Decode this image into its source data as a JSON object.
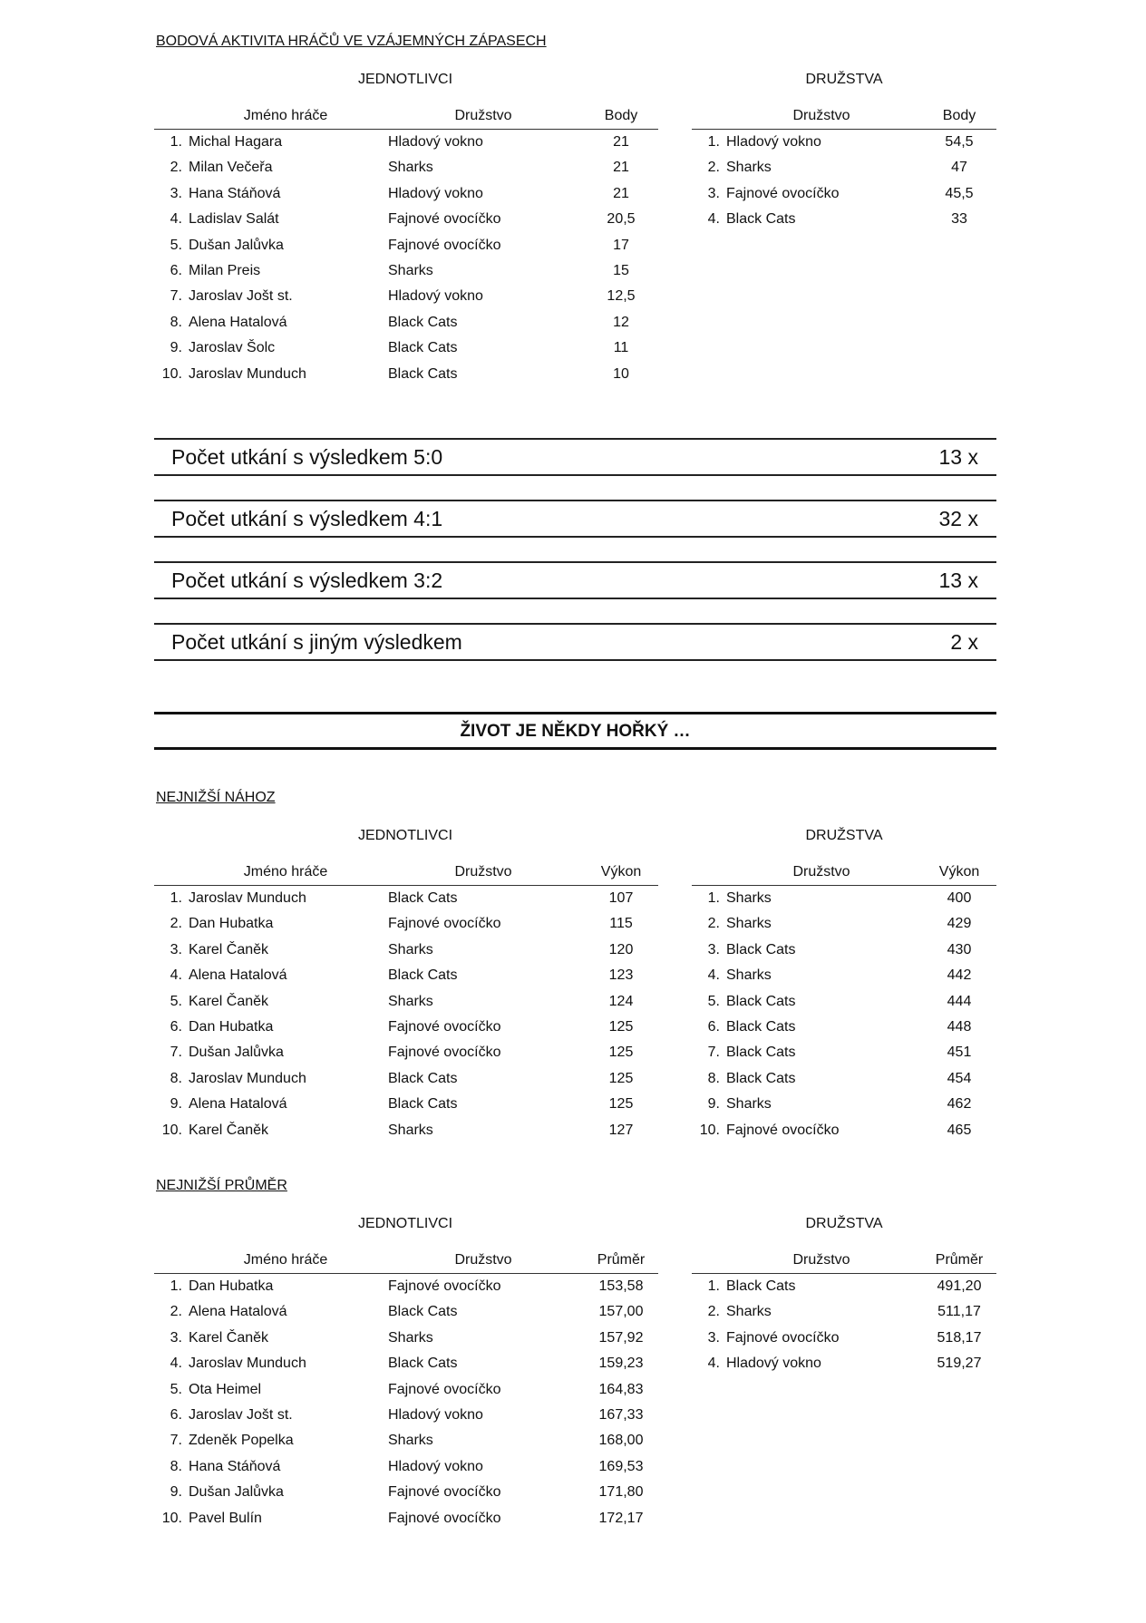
{
  "title": "BODOVÁ AKTIVITA HRÁČŮ VE VZÁJEMNÝCH ZÁPASECH",
  "blocks": [
    {
      "left_heading": "JEDNOTLIVCI",
      "right_heading": "DRUŽSTVA",
      "left_columns": [
        "Jméno hráče",
        "Družstvo",
        "Body"
      ],
      "right_columns": [
        "Družstvo",
        "Body"
      ],
      "players": [
        {
          "rank": "1.",
          "name": "Michal Hagara",
          "team": "Hladový vokno",
          "value": "21"
        },
        {
          "rank": "2.",
          "name": "Milan Večeřa",
          "team": "Sharks",
          "value": "21"
        },
        {
          "rank": "3.",
          "name": "Hana Stáňová",
          "team": "Hladový vokno",
          "value": "21"
        },
        {
          "rank": "4.",
          "name": "Ladislav Salát",
          "team": "Fajnové ovocíčko",
          "value": "20,5"
        },
        {
          "rank": "5.",
          "name": "Dušan Jalůvka",
          "team": "Fajnové ovocíčko",
          "value": "17"
        },
        {
          "rank": "6.",
          "name": "Milan Preis",
          "team": "Sharks",
          "value": "15"
        },
        {
          "rank": "7.",
          "name": "Jaroslav Jošt st.",
          "team": "Hladový vokno",
          "value": "12,5"
        },
        {
          "rank": "8.",
          "name": "Alena Hatalová",
          "team": "Black Cats",
          "value": "12"
        },
        {
          "rank": "9.",
          "name": "Jaroslav Šolc",
          "team": "Black Cats",
          "value": "11"
        },
        {
          "rank": "10.",
          "name": "Jaroslav Munduch",
          "team": "Black Cats",
          "value": "10"
        }
      ],
      "teams": [
        {
          "rank": "1.",
          "team": "Hladový vokno",
          "value": "54,5"
        },
        {
          "rank": "2.",
          "team": "Sharks",
          "value": "47"
        },
        {
          "rank": "3.",
          "team": "Fajnové ovocíčko",
          "value": "45,5"
        },
        {
          "rank": "4.",
          "team": "Black Cats",
          "value": "33"
        }
      ]
    },
    {
      "section_title": "NEJNIŽŠÍ NÁHOZ",
      "left_heading": "JEDNOTLIVCI",
      "right_heading": "DRUŽSTVA",
      "left_columns": [
        "Jméno hráče",
        "Družstvo",
        "Výkon"
      ],
      "right_columns": [
        "Družstvo",
        "Výkon"
      ],
      "players": [
        {
          "rank": "1.",
          "name": "Jaroslav Munduch",
          "team": "Black Cats",
          "value": "107"
        },
        {
          "rank": "2.",
          "name": "Dan Hubatka",
          "team": "Fajnové ovocíčko",
          "value": "115"
        },
        {
          "rank": "3.",
          "name": "Karel Čaněk",
          "team": "Sharks",
          "value": "120"
        },
        {
          "rank": "4.",
          "name": "Alena Hatalová",
          "team": "Black Cats",
          "value": "123"
        },
        {
          "rank": "5.",
          "name": "Karel Čaněk",
          "team": "Sharks",
          "value": "124"
        },
        {
          "rank": "6.",
          "name": "Dan Hubatka",
          "team": "Fajnové ovocíčko",
          "value": "125"
        },
        {
          "rank": "7.",
          "name": "Dušan Jalůvka",
          "team": "Fajnové ovocíčko",
          "value": "125"
        },
        {
          "rank": "8.",
          "name": "Jaroslav Munduch",
          "team": "Black Cats",
          "value": "125"
        },
        {
          "rank": "9.",
          "name": "Alena Hatalová",
          "team": "Black Cats",
          "value": "125"
        },
        {
          "rank": "10.",
          "name": "Karel Čaněk",
          "team": "Sharks",
          "value": "127"
        }
      ],
      "teams": [
        {
          "rank": "1.",
          "team": "Sharks",
          "value": "400"
        },
        {
          "rank": "2.",
          "team": "Sharks",
          "value": "429"
        },
        {
          "rank": "3.",
          "team": "Black Cats",
          "value": "430"
        },
        {
          "rank": "4.",
          "team": "Sharks",
          "value": "442"
        },
        {
          "rank": "5.",
          "team": "Black Cats",
          "value": "444"
        },
        {
          "rank": "6.",
          "team": "Black Cats",
          "value": "448"
        },
        {
          "rank": "7.",
          "team": "Black Cats",
          "value": "451"
        },
        {
          "rank": "8.",
          "team": "Black Cats",
          "value": "454"
        },
        {
          "rank": "9.",
          "team": "Sharks",
          "value": "462"
        },
        {
          "rank": "10.",
          "team": "Fajnové ovocíčko",
          "value": "465"
        }
      ]
    },
    {
      "section_title": "NEJNIŽŠÍ PRŮMĚR",
      "left_heading": "JEDNOTLIVCI",
      "right_heading": "DRUŽSTVA",
      "left_columns": [
        "Jméno hráče",
        "Družstvo",
        "Průměr"
      ],
      "right_columns": [
        "Družstvo",
        "Průměr"
      ],
      "players": [
        {
          "rank": "1.",
          "name": "Dan Hubatka",
          "team": "Fajnové ovocíčko",
          "value": "153,58"
        },
        {
          "rank": "2.",
          "name": "Alena Hatalová",
          "team": "Black Cats",
          "value": "157,00"
        },
        {
          "rank": "3.",
          "name": "Karel Čaněk",
          "team": "Sharks",
          "value": "157,92"
        },
        {
          "rank": "4.",
          "name": "Jaroslav Munduch",
          "team": "Black Cats",
          "value": "159,23"
        },
        {
          "rank": "5.",
          "name": "Ota Heimel",
          "team": "Fajnové ovocíčko",
          "value": "164,83"
        },
        {
          "rank": "6.",
          "name": "Jaroslav Jošt st.",
          "team": "Hladový vokno",
          "value": "167,33"
        },
        {
          "rank": "7.",
          "name": "Zdeněk Popelka",
          "team": "Sharks",
          "value": "168,00"
        },
        {
          "rank": "8.",
          "name": "Hana Stáňová",
          "team": "Hladový vokno",
          "value": "169,53"
        },
        {
          "rank": "9.",
          "name": "Dušan Jalůvka",
          "team": "Fajnové ovocíčko",
          "value": "171,80"
        },
        {
          "rank": "10.",
          "name": "Pavel Bulín",
          "team": "Fajnové ovocíčko",
          "value": "172,17"
        }
      ],
      "teams": [
        {
          "rank": "1.",
          "team": "Black Cats",
          "value": "491,20"
        },
        {
          "rank": "2.",
          "team": "Sharks",
          "value": "511,17"
        },
        {
          "rank": "3.",
          "team": "Fajnové ovocíčko",
          "value": "518,17"
        },
        {
          "rank": "4.",
          "team": "Hladový vokno",
          "value": "519,27"
        }
      ]
    }
  ],
  "stats": [
    {
      "label": "Počet utkání s výsledkem 5:0",
      "value": "13 x"
    },
    {
      "label": "Počet utkání s výsledkem 4:1",
      "value": "32 x"
    },
    {
      "label": "Počet utkání s výsledkem 3:2",
      "value": "13 x"
    },
    {
      "label": "Počet utkání s jiným výsledkem",
      "value": "2 x"
    }
  ],
  "banner": "ŽIVOT JE NĚKDY HOŘKÝ …"
}
